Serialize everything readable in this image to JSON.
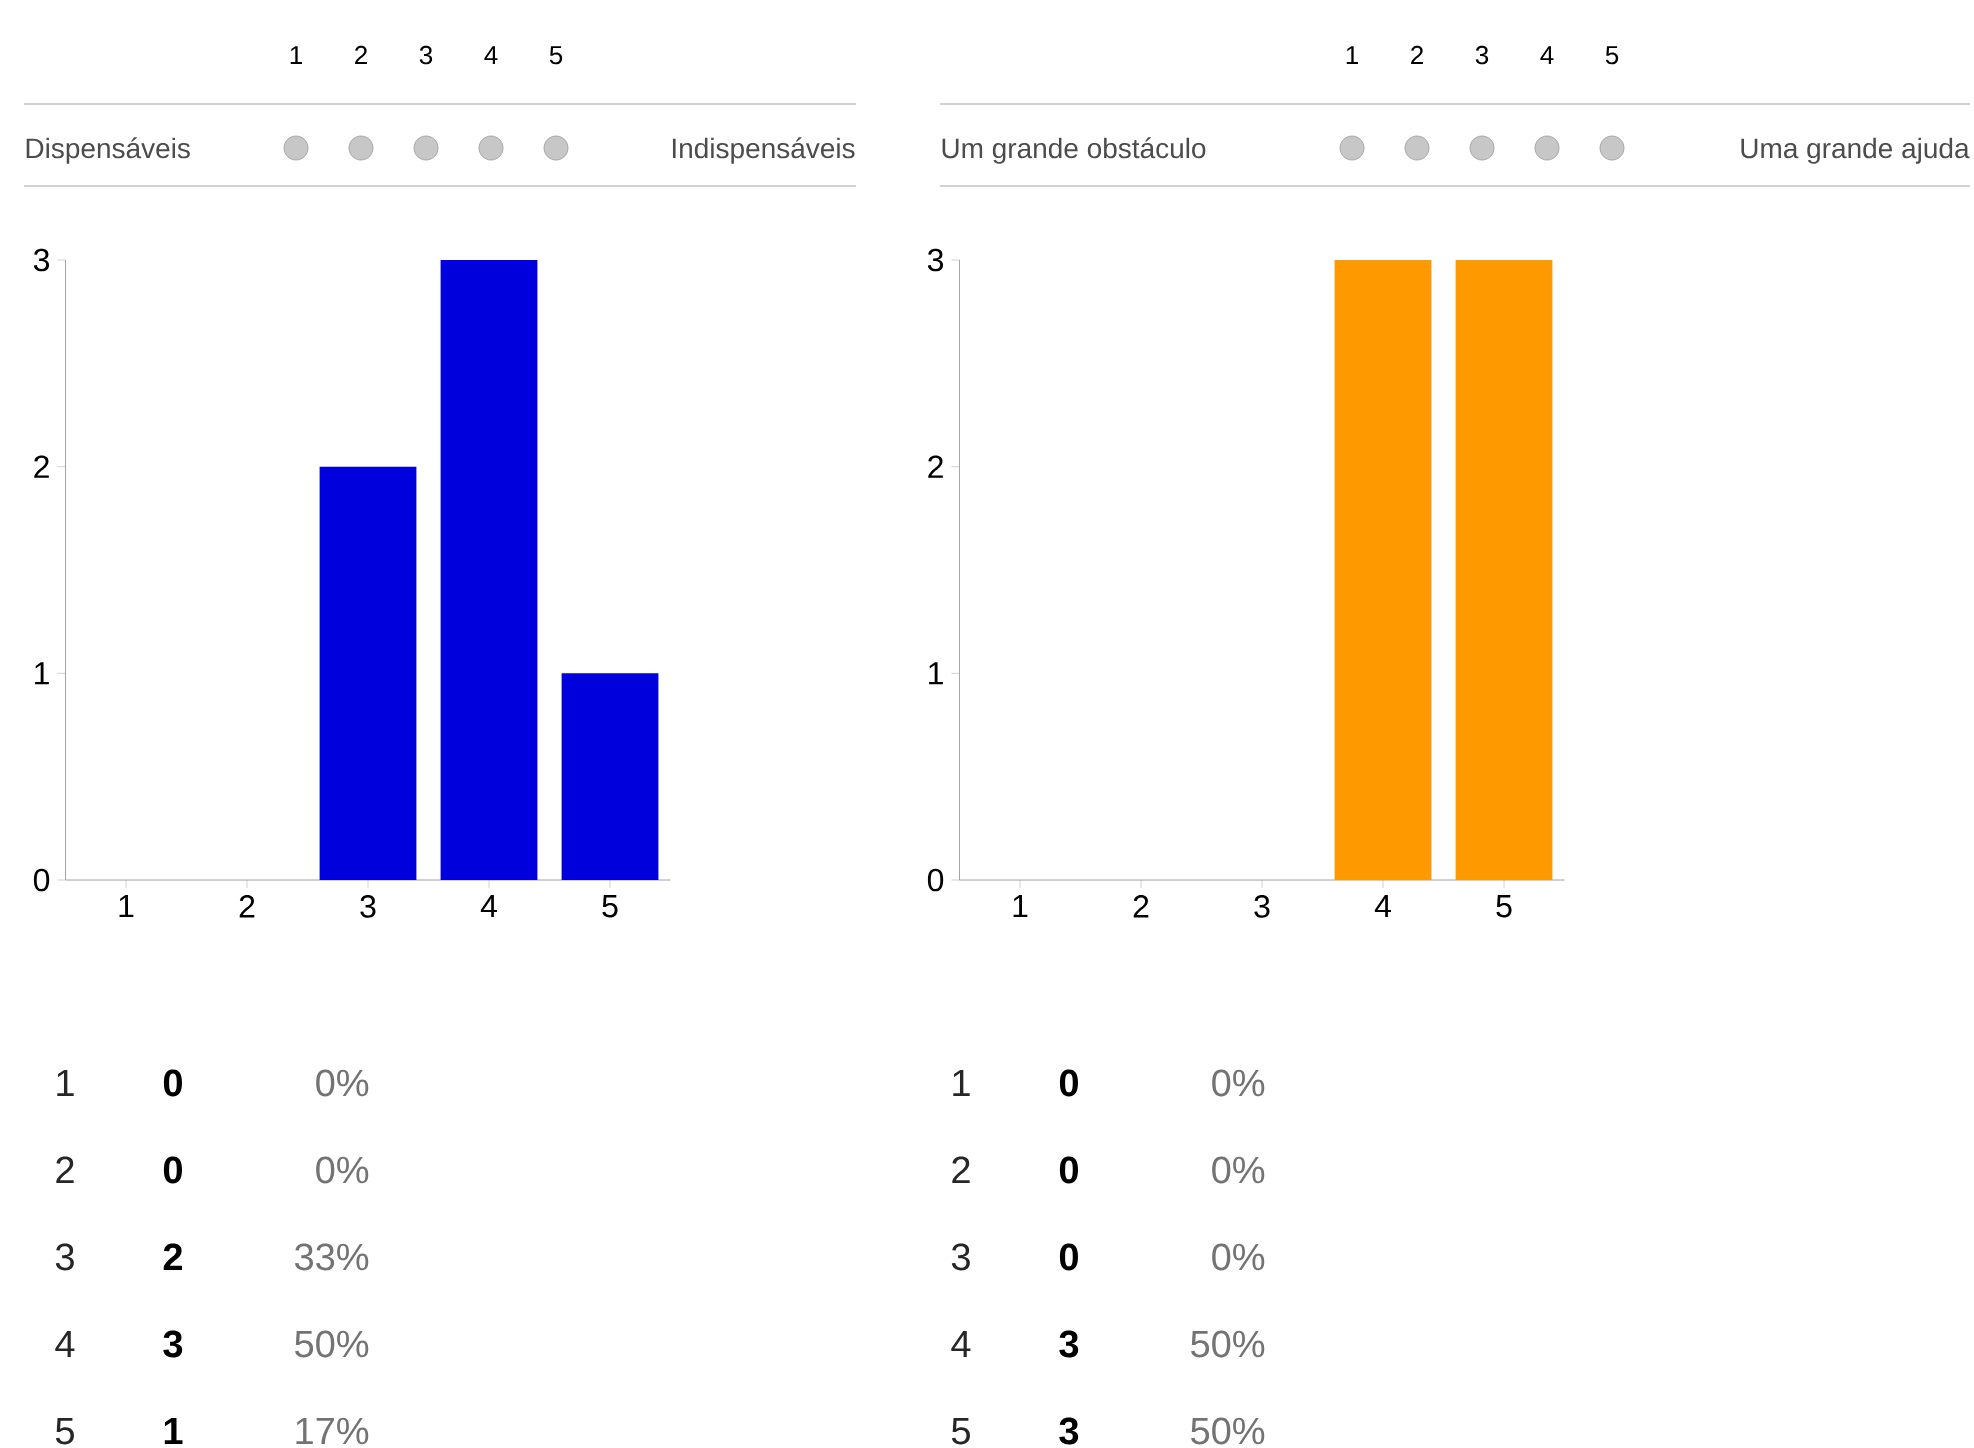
{
  "chart_data": [
    {
      "type": "bar",
      "categories": [
        "1",
        "2",
        "3",
        "4",
        "5"
      ],
      "values": [
        0,
        0,
        2,
        3,
        1
      ],
      "color": "#0000dd",
      "ylim": [
        0,
        3
      ],
      "yticks": [
        0,
        1,
        2,
        3
      ],
      "annotations": [
        "Dispensáveis",
        "Indispensáveis",
        "0",
        "0%",
        "0",
        "0%",
        "2",
        "33%",
        "3",
        "50%",
        "1",
        "17%"
      ]
    },
    {
      "type": "bar",
      "categories": [
        "1",
        "2",
        "3",
        "4",
        "5"
      ],
      "values": [
        0,
        0,
        0,
        3,
        3
      ],
      "color": "#ff9900",
      "ylim": [
        0,
        3
      ],
      "yticks": [
        0,
        1,
        2,
        3
      ],
      "annotations": [
        "Um grande obstáculo",
        "Uma grande ajuda",
        "0",
        "0%",
        "0",
        "0%",
        "0",
        "0%",
        "3",
        "50%",
        "3",
        "50%"
      ]
    }
  ]
}
